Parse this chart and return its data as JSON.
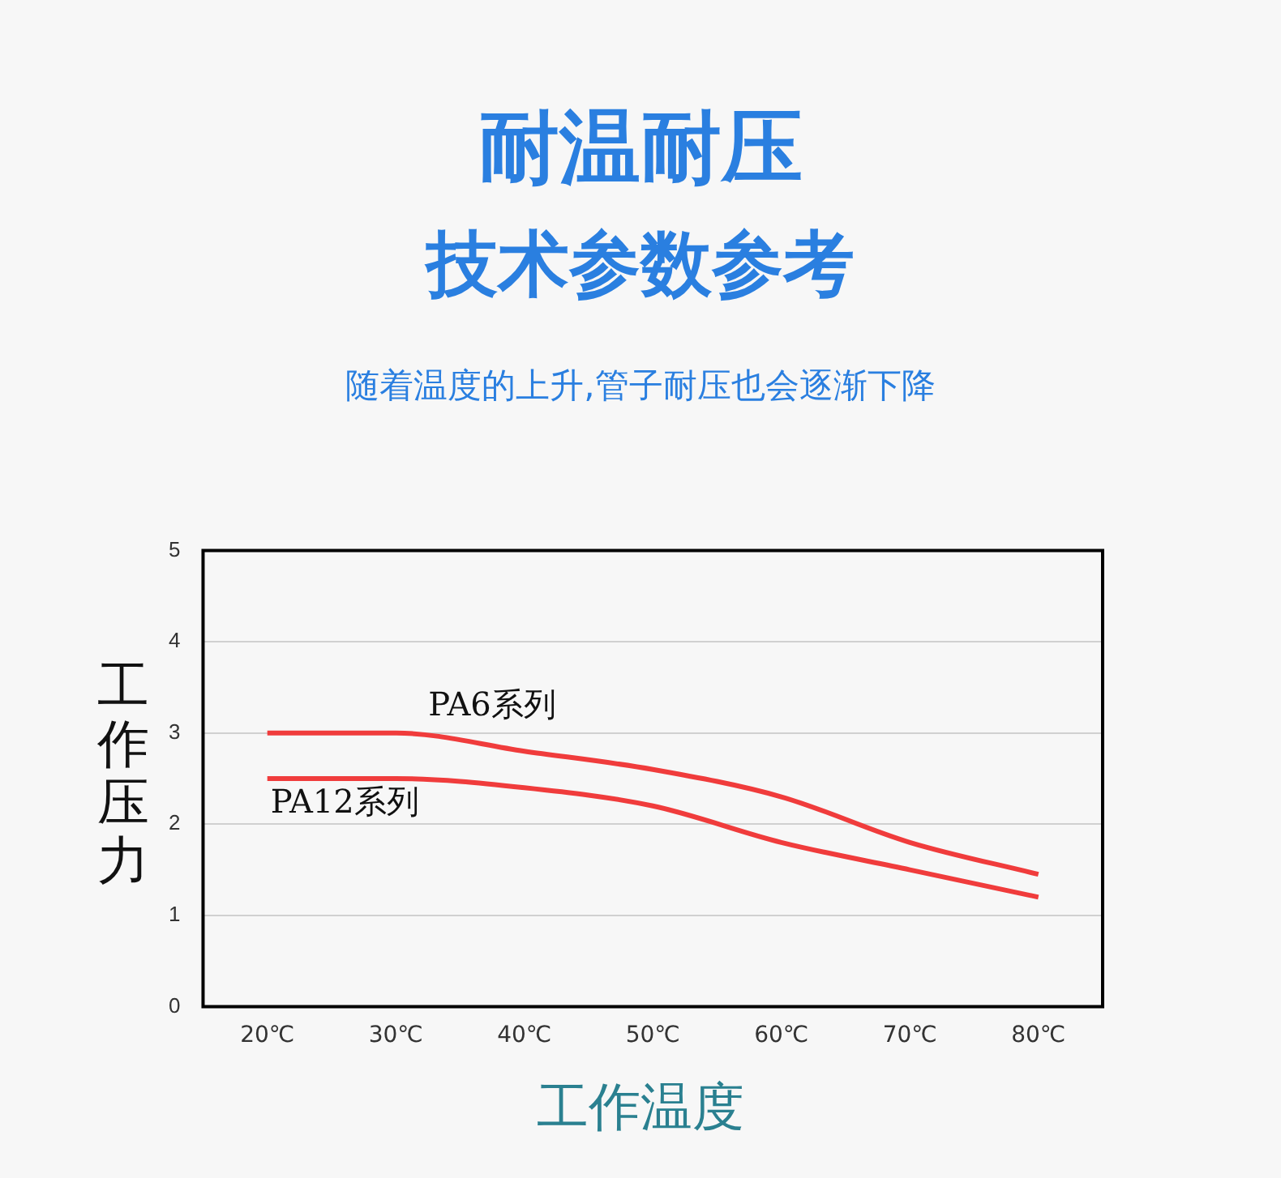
{
  "chart_data": {
    "type": "line",
    "title": "耐温耐压",
    "subtitle": "技术参数参考",
    "annotations": [
      "随着温度的上升,管子耐压也会逐渐下降"
    ],
    "xlabel": "工作温度",
    "ylabel": "工作压力",
    "categories": [
      "20℃",
      "30℃",
      "40℃",
      "50℃",
      "60℃",
      "70℃",
      "80℃"
    ],
    "series": [
      {
        "name": "PA6系列",
        "color": "#f03c3c",
        "values": [
          3.0,
          3.0,
          2.8,
          2.6,
          2.3,
          1.8,
          1.45
        ]
      },
      {
        "name": "PA12系列",
        "color": "#f03c3c",
        "values": [
          2.5,
          2.5,
          2.4,
          2.2,
          1.8,
          1.5,
          1.2
        ]
      }
    ],
    "ylim": [
      0,
      5
    ],
    "yticks": [
      0,
      1,
      2,
      3,
      4,
      5
    ],
    "grid": "y",
    "legend": false,
    "marker": "none",
    "line_style": "solid"
  }
}
